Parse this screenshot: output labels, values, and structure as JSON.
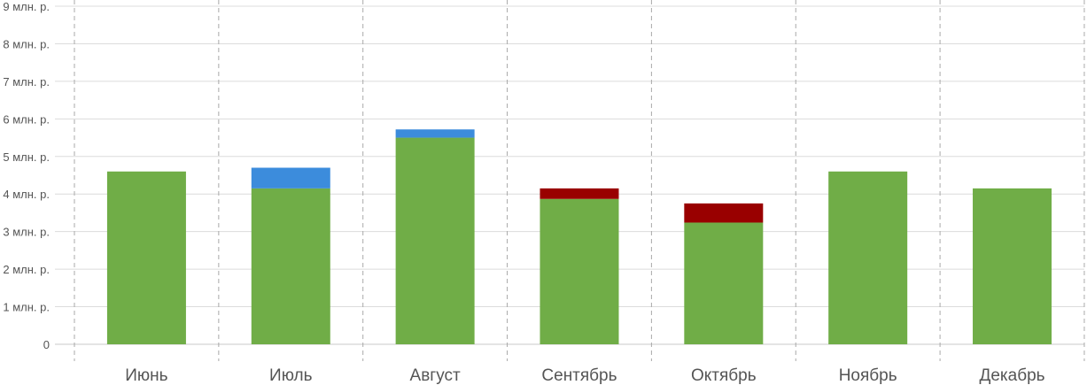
{
  "chart_data": {
    "type": "bar",
    "stacked": true,
    "title": "",
    "xlabel": "",
    "ylabel": "",
    "categories": [
      "Июнь",
      "Июль",
      "Август",
      "Сентябрь",
      "Октябрь",
      "Ноябрь",
      "Декабрь"
    ],
    "series": [
      {
        "values": [
          4.6,
          4.15,
          5.5,
          3.87,
          3.24,
          4.6,
          4.15
        ],
        "color": "#70ad47"
      },
      {
        "values": [
          0,
          0.55,
          0.22,
          0,
          0,
          0,
          0
        ],
        "color": "#3c8cdc"
      },
      {
        "values": [
          0,
          0,
          0,
          0.28,
          0.51,
          0,
          0
        ],
        "color": "#990000"
      }
    ],
    "ylim": [
      0,
      9
    ],
    "yticks": [
      0,
      1,
      2,
      3,
      4,
      5,
      6,
      7,
      8,
      9
    ],
    "ytick_labels": [
      "0",
      "1 млн. р.",
      "2 млн. р.",
      "3 млн. р.",
      "4 млн. р.",
      "5 млн. р.",
      "6 млн. р.",
      "7 млн. р.",
      "8 млн. р.",
      "9 млн. р."
    ],
    "grid": {
      "horizontal": true,
      "vertical_dashed": true
    },
    "legend": "none"
  }
}
